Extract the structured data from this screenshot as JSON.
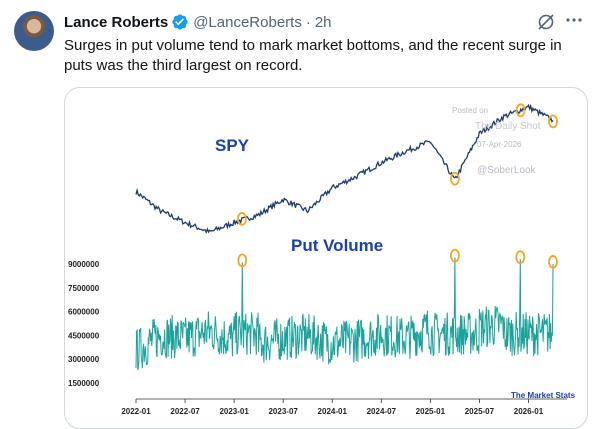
{
  "post": {
    "author_name": "Lance Roberts",
    "handle": "@LanceRoberts",
    "separator": "·",
    "time": "2h",
    "text": "Surges in put volume tend to mark market bottoms, and the recent surge in puts was the third largest on record.",
    "more_icon": "more-horizontal-icon",
    "grok_icon": "grok-icon",
    "verified_color": "#1d9bf0"
  },
  "chart": {
    "spy_label": "SPY",
    "put_label": "Put Volume",
    "watermark_posted": "Posted on",
    "watermark_source": "The Daily Shot",
    "watermark_date": "07-Apr-2026",
    "watermark_handle": "@SoberLook",
    "credit": "The Market Stats",
    "label_color": "#1a3fb4",
    "spy_color": "#1c3a6e",
    "put_color": "#1aa39a",
    "highlight_color": "#f5a623"
  },
  "chart_data": [
    {
      "type": "line",
      "title": "SPY",
      "x": [
        "2022-01",
        "2022-04",
        "2022-07",
        "2022-10",
        "2023-01",
        "2023-04",
        "2023-07",
        "2023-10",
        "2024-01",
        "2024-04",
        "2024-07",
        "2024-10",
        "2025-01",
        "2025-04",
        "2025-07",
        "2025-10",
        "2026-01",
        "2026-04"
      ],
      "values": [
        470,
        420,
        390,
        365,
        390,
        410,
        450,
        420,
        480,
        510,
        545,
        575,
        600,
        500,
        620,
        665,
        690,
        655
      ],
      "grid": false
    },
    {
      "type": "line",
      "title": "Put Volume",
      "x": [
        "2022-01",
        "2022-04",
        "2022-07",
        "2022-10",
        "2023-01",
        "2023-02",
        "2023-04",
        "2023-07",
        "2023-10",
        "2024-01",
        "2024-04",
        "2024-07",
        "2024-10",
        "2025-01",
        "2025-04",
        "2025-07",
        "2025-10",
        "2025-12",
        "2026-02",
        "2026-04"
      ],
      "values": [
        3500000,
        4500000,
        4300000,
        4800000,
        4200000,
        9100000,
        4000000,
        4300000,
        4500000,
        4000000,
        4200000,
        4600000,
        4300000,
        5000000,
        9400000,
        5000000,
        5200000,
        9300000,
        4800000,
        9000000
      ],
      "y_ticks": [
        "1500000",
        "3000000",
        "4500000",
        "6000000",
        "7500000",
        "9000000"
      ],
      "x_ticks": [
        "2022-01",
        "2022-07",
        "2023-01",
        "2023-07",
        "2024-01",
        "2024-07",
        "2025-01",
        "2025-07",
        "2026-01"
      ],
      "ylim": [
        1000000,
        9500000
      ],
      "grid": false
    }
  ]
}
